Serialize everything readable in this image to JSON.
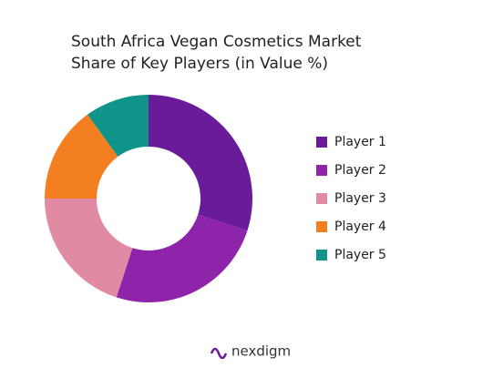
{
  "chart_data": {
    "type": "donut",
    "title": "South Africa Vegan Cosmetics Market Share of Key Players (in Value %)",
    "categories": [
      "Player 1",
      "Player 2",
      "Player 3",
      "Player 4",
      "Player 5"
    ],
    "values": [
      30,
      25,
      20,
      15,
      10
    ],
    "colors": [
      "#6a1b9a",
      "#8e24aa",
      "#e08ba3",
      "#f47f20",
      "#0e9488"
    ],
    "legend": "right"
  },
  "brand": "nexdigm"
}
